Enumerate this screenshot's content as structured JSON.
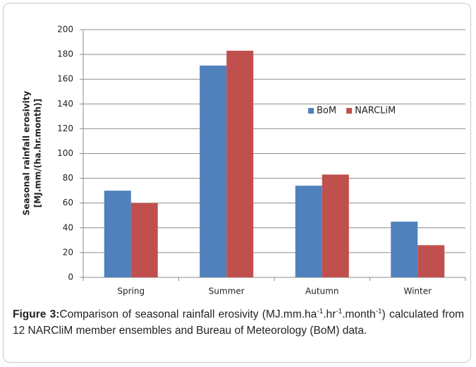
{
  "chart_data": {
    "type": "bar",
    "ylabel": [
      "Seasonal rainfall erosivity",
      "[MJ.mm/(ha.hr.month)]"
    ],
    "categories": [
      "Spring",
      "Summer",
      "Autumn",
      "Winter"
    ],
    "series": [
      {
        "name": "BoM",
        "color": "#4f81bd",
        "values": [
          70,
          171,
          74,
          45
        ]
      },
      {
        "name": "NARCLiM",
        "color": "#c0504d",
        "values": [
          60,
          183,
          83,
          26
        ]
      }
    ],
    "ylim": [
      0,
      200
    ],
    "yticks": [
      0,
      20,
      40,
      60,
      80,
      100,
      120,
      140,
      160,
      180,
      200
    ],
    "grid": true,
    "legend": "upper-right"
  },
  "caption": {
    "label": "Figure 3:",
    "parts": [
      "Comparison of seasonal rainfall erosivity (MJ.mm.ha",
      "-1",
      ".hr",
      "-1",
      ".month",
      "-1",
      ") calculated from 12 NARCliM member ensembles and Bureau of Meteorology (BoM) data."
    ]
  }
}
